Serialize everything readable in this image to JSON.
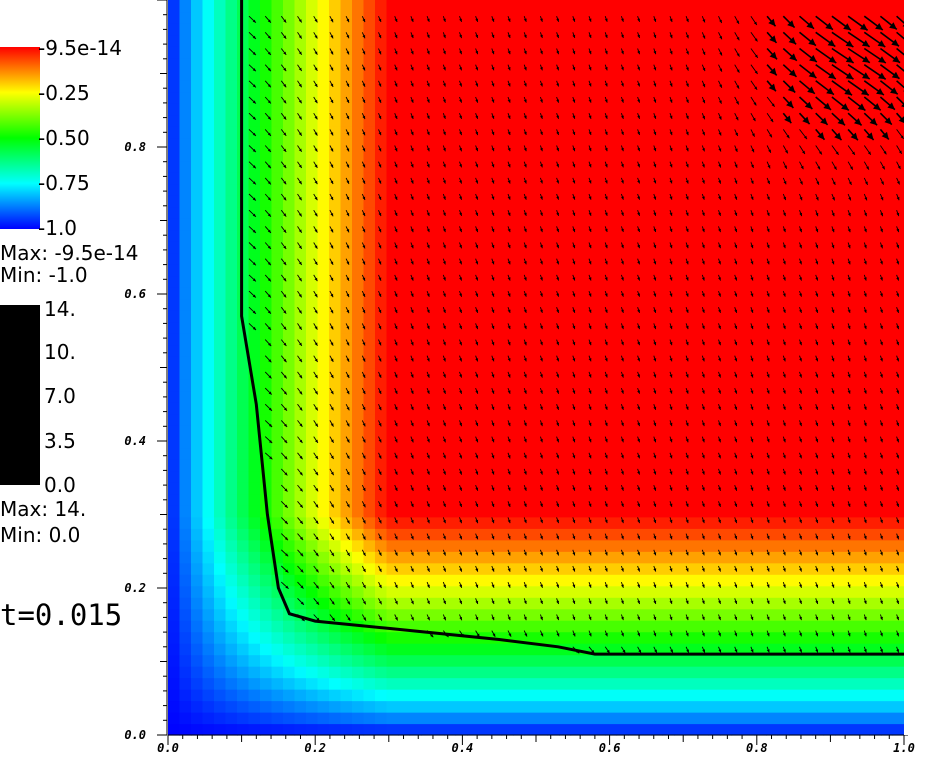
{
  "chart_data": {
    "type": "heatmap",
    "title": "",
    "xlabel": "",
    "ylabel": "",
    "xlim": [
      0.0,
      1.0
    ],
    "ylim": [
      0.0,
      1.0
    ],
    "x_ticks": [
      "0.0",
      "0.2",
      "0.4",
      "0.6",
      "0.8",
      "1.0"
    ],
    "y_ticks": [
      "0.0",
      "0.2",
      "0.4",
      "0.6",
      "0.8"
    ],
    "scalar_colorbar": {
      "labels": [
        "-9.5e-14",
        "-0.25",
        "-0.50",
        "-0.75",
        "-1.0"
      ],
      "colors": [
        "#ff0000",
        "#ffff00",
        "#00ff00",
        "#00ffff",
        "#0000ff"
      ],
      "max_text": "Max: -9.5e-14",
      "min_text": "Min: -1.0",
      "max": -9.5e-14,
      "min": -1.0
    },
    "vector_colorbar": {
      "labels": [
        "14.",
        "10.",
        "7.0",
        "3.5",
        "0.0"
      ],
      "color": "#000000",
      "max_text": "Max: 14.",
      "min_text": "Min: 0.0",
      "max": 14,
      "min": 0
    },
    "contour_line": {
      "color": "#000000",
      "points": [
        [
          0.1,
          1.0
        ],
        [
          0.1,
          0.57
        ],
        [
          0.12,
          0.45
        ],
        [
          0.135,
          0.3
        ],
        [
          0.15,
          0.2
        ],
        [
          0.165,
          0.165
        ],
        [
          0.2,
          0.155
        ],
        [
          0.3,
          0.145
        ],
        [
          0.45,
          0.13
        ],
        [
          0.53,
          0.12
        ],
        [
          0.58,
          0.11
        ],
        [
          1.0,
          0.11
        ]
      ]
    },
    "vector_field": {
      "color": "#000000",
      "note_max_region": [
        0.8,
        0.95
      ]
    }
  },
  "time_label": "t=0.015"
}
